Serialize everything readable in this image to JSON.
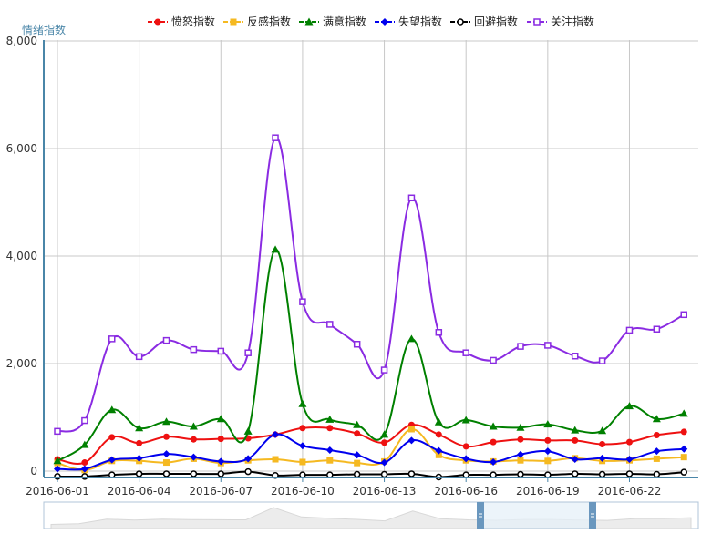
{
  "chart_data": {
    "type": "line",
    "ylabel": "情绪指数",
    "ylim": [
      0,
      8000
    ],
    "yticks": [
      0,
      2000,
      4000,
      6000,
      8000
    ],
    "ytick_labels": [
      "0",
      "2,000",
      "4,000",
      "6,000",
      "8,000"
    ],
    "x": [
      "2016-06-01",
      "2016-06-02",
      "2016-06-03",
      "2016-06-04",
      "2016-06-05",
      "2016-06-06",
      "2016-06-07",
      "2016-06-08",
      "2016-06-09",
      "2016-06-10",
      "2016-06-11",
      "2016-06-12",
      "2016-06-13",
      "2016-06-14",
      "2016-06-15",
      "2016-06-16",
      "2016-06-17",
      "2016-06-18",
      "2016-06-19",
      "2016-06-20",
      "2016-06-21",
      "2016-06-22",
      "2016-06-23",
      "2016-06-24"
    ],
    "xtick_labels": [
      "2016-06-01",
      "2016-06-04",
      "2016-06-07",
      "2016-06-10",
      "2016-06-13",
      "2016-06-16",
      "2016-06-19",
      "2016-06-22"
    ],
    "grid": true,
    "legend_position": "top-center",
    "series": [
      {
        "name": "愤怒指数",
        "color": "#ee1111",
        "marker": "circle",
        "values": [
          220,
          160,
          630,
          520,
          640,
          590,
          600,
          610,
          680,
          800,
          800,
          700,
          530,
          860,
          680,
          460,
          540,
          590,
          570,
          570,
          500,
          540,
          670,
          730
        ]
      },
      {
        "name": "反感指数",
        "color": "#f5b921",
        "marker": "square",
        "values": [
          150,
          20,
          190,
          190,
          160,
          230,
          150,
          200,
          220,
          170,
          200,
          150,
          180,
          780,
          300,
          200,
          180,
          200,
          190,
          240,
          190,
          200,
          230,
          260
        ]
      },
      {
        "name": "满意指数",
        "color": "#008000",
        "marker": "triangle",
        "values": [
          190,
          490,
          1140,
          800,
          920,
          830,
          970,
          740,
          4120,
          1250,
          960,
          860,
          680,
          2460,
          910,
          950,
          830,
          810,
          870,
          760,
          750,
          1210,
          970,
          1070
        ]
      },
      {
        "name": "失望指数",
        "color": "#0000ee",
        "marker": "diamond",
        "values": [
          40,
          40,
          210,
          240,
          320,
          260,
          180,
          230,
          680,
          470,
          390,
          300,
          160,
          570,
          380,
          230,
          170,
          310,
          370,
          220,
          240,
          220,
          370,
          410
        ]
      },
      {
        "name": "回避指数",
        "color": "#000000",
        "marker": "circle-open",
        "values": [
          -100,
          -100,
          -70,
          -50,
          -50,
          -50,
          -50,
          -10,
          -80,
          -70,
          -70,
          -60,
          -60,
          -50,
          -110,
          -70,
          -70,
          -60,
          -70,
          -50,
          -60,
          -50,
          -60,
          -20
        ]
      },
      {
        "name": "关注指数",
        "color": "#8a2be2",
        "marker": "square-open",
        "values": [
          740,
          940,
          2460,
          2130,
          2430,
          2260,
          2230,
          2200,
          6200,
          3150,
          2730,
          2360,
          1880,
          5080,
          2580,
          2200,
          2060,
          2320,
          2340,
          2140,
          2050,
          2620,
          2640,
          2910
        ]
      }
    ]
  },
  "colors": {
    "axis": "#4a86a8",
    "grid": "#c8c8c8",
    "navigator_fill": "#e6f0f8",
    "navigator_handle": "#6a97be"
  }
}
